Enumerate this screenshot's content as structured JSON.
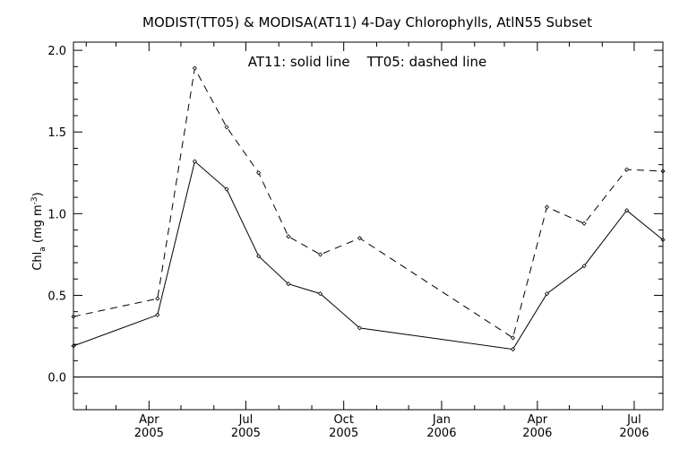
{
  "chart_data": {
    "type": "line",
    "title": "MODIST(TT05) & MODISA(AT11) 4-Day Chlorophylls, AtlN55 Subset",
    "annotation": "AT11: solid line    TT05: dashed line",
    "ylabel_main": "Chl",
    "ylabel_sub": "a",
    "ylabel_unit": " (mg m",
    "ylabel_sup": "-3",
    "ylabel_close": ")",
    "ylim": [
      -0.2,
      2.05
    ],
    "y_ticks": [
      "0.0",
      "0.5",
      "1.0",
      "1.5",
      "2.0"
    ],
    "xlim": [
      "2005-01-20",
      "2006-07-28"
    ],
    "x_ticks": [
      {
        "date": "2005-04-01",
        "month": "Apr",
        "year": "2005"
      },
      {
        "date": "2005-07-01",
        "month": "Jul",
        "year": "2005"
      },
      {
        "date": "2005-10-01",
        "month": "Oct",
        "year": "2005"
      },
      {
        "date": "2006-01-01",
        "month": "Jan",
        "year": "2006"
      },
      {
        "date": "2006-04-01",
        "month": "Apr",
        "year": "2006"
      },
      {
        "date": "2006-07-01",
        "month": "Jul",
        "year": "2006"
      }
    ],
    "reference_line": 0.0,
    "series": [
      {
        "name": "AT11",
        "style": "solid",
        "points": [
          [
            "2005-01-20",
            0.19
          ],
          [
            "2005-04-09",
            0.38
          ],
          [
            "2005-05-14",
            1.32
          ],
          [
            "2005-06-13",
            1.15
          ],
          [
            "2005-07-13",
            0.74
          ],
          [
            "2005-08-10",
            0.57
          ],
          [
            "2005-09-09",
            0.51
          ],
          [
            "2005-10-16",
            0.3
          ],
          [
            "2006-03-09",
            0.17
          ],
          [
            "2006-04-10",
            0.51
          ],
          [
            "2006-05-15",
            0.68
          ],
          [
            "2006-06-24",
            1.02
          ],
          [
            "2006-07-28",
            0.84
          ]
        ]
      },
      {
        "name": "TT05",
        "style": "dashed",
        "points": [
          [
            "2005-01-20",
            0.37
          ],
          [
            "2005-04-09",
            0.48
          ],
          [
            "2005-05-14",
            1.89
          ],
          [
            "2005-06-13",
            1.53
          ],
          [
            "2005-07-13",
            1.25
          ],
          [
            "2005-08-10",
            0.86
          ],
          [
            "2005-09-09",
            0.75
          ],
          [
            "2005-10-16",
            0.85
          ],
          [
            "2006-03-09",
            0.24
          ],
          [
            "2006-04-10",
            1.04
          ],
          [
            "2006-05-15",
            0.94
          ],
          [
            "2006-06-24",
            1.27
          ],
          [
            "2006-07-28",
            1.26
          ]
        ]
      }
    ]
  }
}
